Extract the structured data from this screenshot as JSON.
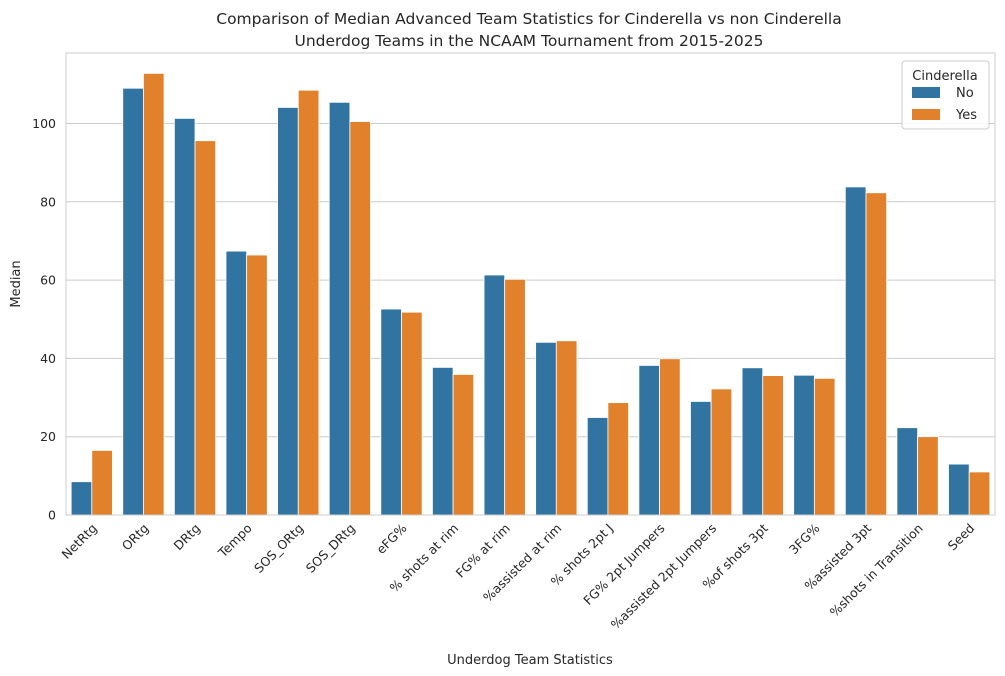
{
  "chart_data": {
    "type": "bar",
    "title_line1": "Comparison of Median Advanced Team Statistics for Cinderella vs non Cinderella",
    "title_line2": "Underdog Teams in the NCAAM Tournament from 2015-2025",
    "xlabel": "Underdog Team Statistics",
    "ylabel": "Median",
    "ylim": [
      0,
      118
    ],
    "yticks": [
      0,
      20,
      40,
      60,
      80,
      100
    ],
    "grid": "y",
    "legend_position": "top-right",
    "legend_title": "Cinderella",
    "categories": [
      "NetRtg",
      "ORtg",
      "DRtg",
      "Tempo",
      "SOS_ORtg",
      "SOS_DRtg",
      "eFG%",
      "% shots at rim",
      "FG% at rim",
      "%assisted at rim",
      "% shots 2pt J",
      "FG% 2pt Jumpers",
      "%assisted 2pt Jumpers",
      "%of shots 3pt",
      "3FG%",
      "%assisted 3pt",
      "%shots in Transition",
      "Seed"
    ],
    "series": [
      {
        "name": "No",
        "color": "#3274a1",
        "values": [
          8.5,
          109.0,
          101.3,
          67.4,
          104.1,
          105.4,
          52.6,
          37.7,
          61.3,
          44.1,
          24.9,
          38.2,
          29.0,
          37.6,
          35.7,
          83.8,
          22.3,
          13.0
        ]
      },
      {
        "name": "Yes",
        "color": "#e1812c",
        "values": [
          16.5,
          112.8,
          95.6,
          66.4,
          108.5,
          100.5,
          51.8,
          35.9,
          60.2,
          44.5,
          28.7,
          39.9,
          32.2,
          35.6,
          34.9,
          82.3,
          20.0,
          11.0
        ]
      }
    ]
  }
}
